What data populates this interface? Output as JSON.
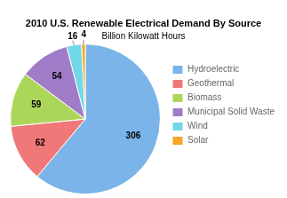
{
  "chart_data": {
    "type": "pie",
    "title": "2010 U.S. Renewable Electrical Demand By Source",
    "subtitle": "Billion Kilowatt Hours",
    "categories": [
      "Hydroelectric",
      "Geothermal",
      "Biomass",
      "Municipal Solid Waste",
      "Wind",
      "Solar"
    ],
    "values": [
      306,
      62,
      59,
      54,
      16,
      4
    ],
    "colors": [
      "#7ab4e8",
      "#f07878",
      "#acd65a",
      "#a07cc8",
      "#72d8e8",
      "#f5a623"
    ],
    "data_labels": true,
    "legend": "right"
  }
}
